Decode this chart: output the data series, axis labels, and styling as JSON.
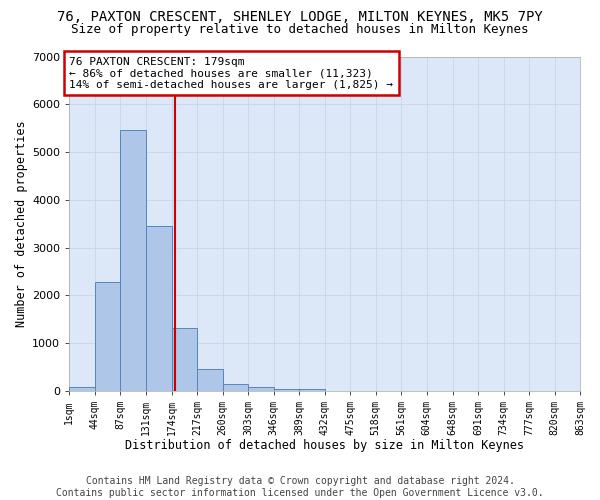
{
  "title": "76, PAXTON CRESCENT, SHENLEY LODGE, MILTON KEYNES, MK5 7PY",
  "subtitle": "Size of property relative to detached houses in Milton Keynes",
  "xlabel": "Distribution of detached houses by size in Milton Keynes",
  "ylabel": "Number of detached properties",
  "footer_line1": "Contains HM Land Registry data © Crown copyright and database right 2024.",
  "footer_line2": "Contains public sector information licensed under the Open Government Licence v3.0.",
  "annotation_line1": "76 PAXTON CRESCENT: 179sqm",
  "annotation_line2": "← 86% of detached houses are smaller (11,323)",
  "annotation_line3": "14% of semi-detached houses are larger (1,825) →",
  "property_size": 179,
  "bar_color": "#aec6e8",
  "bar_edge_color": "#5585c0",
  "bin_edges": [
    1,
    44,
    87,
    131,
    174,
    217,
    260,
    303,
    346,
    389,
    432,
    475,
    518,
    561,
    604,
    648,
    691,
    734,
    777,
    820,
    863
  ],
  "bar_heights": [
    75,
    2280,
    5460,
    3450,
    1320,
    470,
    155,
    85,
    50,
    35,
    0,
    0,
    0,
    0,
    0,
    0,
    0,
    0,
    0,
    0
  ],
  "tick_labels": [
    "1sqm",
    "44sqm",
    "87sqm",
    "131sqm",
    "174sqm",
    "217sqm",
    "260sqm",
    "303sqm",
    "346sqm",
    "389sqm",
    "432sqm",
    "475sqm",
    "518sqm",
    "561sqm",
    "604sqm",
    "648sqm",
    "691sqm",
    "734sqm",
    "777sqm",
    "820sqm",
    "863sqm"
  ],
  "ylim": [
    0,
    7000
  ],
  "yticks": [
    0,
    1000,
    2000,
    3000,
    4000,
    5000,
    6000,
    7000
  ],
  "grid_color": "#c8d4e8",
  "background_color": "#dce8f8",
  "red_line_color": "#cc0000",
  "box_edge_color": "#cc0000",
  "title_fontsize": 10,
  "subtitle_fontsize": 9,
  "axis_label_fontsize": 8.5,
  "tick_fontsize": 7,
  "annotation_fontsize": 8,
  "footer_fontsize": 7
}
